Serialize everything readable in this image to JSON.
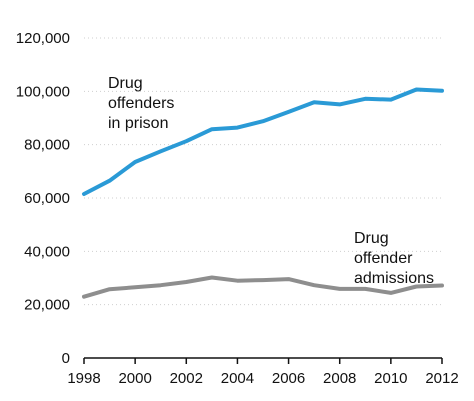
{
  "chart_data": {
    "type": "line",
    "title": "",
    "xlabel": "",
    "ylabel": "",
    "x": [
      1998,
      1999,
      2000,
      2001,
      2002,
      2003,
      2004,
      2005,
      2006,
      2007,
      2008,
      2009,
      2010,
      2011,
      2012
    ],
    "xlim": [
      1998,
      2012
    ],
    "ylim": [
      0,
      120000
    ],
    "x_ticks": [
      1998,
      2000,
      2002,
      2004,
      2006,
      2008,
      2010,
      2012
    ],
    "x_tick_labels": [
      "1998",
      "2000",
      "2002",
      "2004",
      "2006",
      "2008",
      "2010",
      "2012"
    ],
    "y_ticks": [
      0,
      20000,
      40000,
      60000,
      80000,
      100000,
      120000
    ],
    "y_tick_labels": [
      "0",
      "20,000",
      "40,000",
      "60,000",
      "80,000",
      "100,000",
      "120,000"
    ],
    "grid": "horizontal",
    "legend": "none",
    "series": [
      {
        "name": "Drug offenders in prison",
        "label_lines": [
          "Drug",
          "offenders",
          "in prison"
        ],
        "color": "#2a9ad6",
        "values": [
          61500,
          66500,
          73500,
          77500,
          81300,
          85800,
          86400,
          88800,
          92300,
          95900,
          95100,
          97200,
          96900,
          100700,
          100200
        ]
      },
      {
        "name": "Drug offender admissions",
        "label_lines": [
          "Drug",
          "offender",
          "admissions"
        ],
        "color": "#8e8e8e",
        "values": [
          23000,
          25800,
          26500,
          27300,
          28500,
          30200,
          29000,
          29200,
          29600,
          27300,
          25900,
          25900,
          24400,
          26800,
          27200
        ]
      }
    ]
  }
}
